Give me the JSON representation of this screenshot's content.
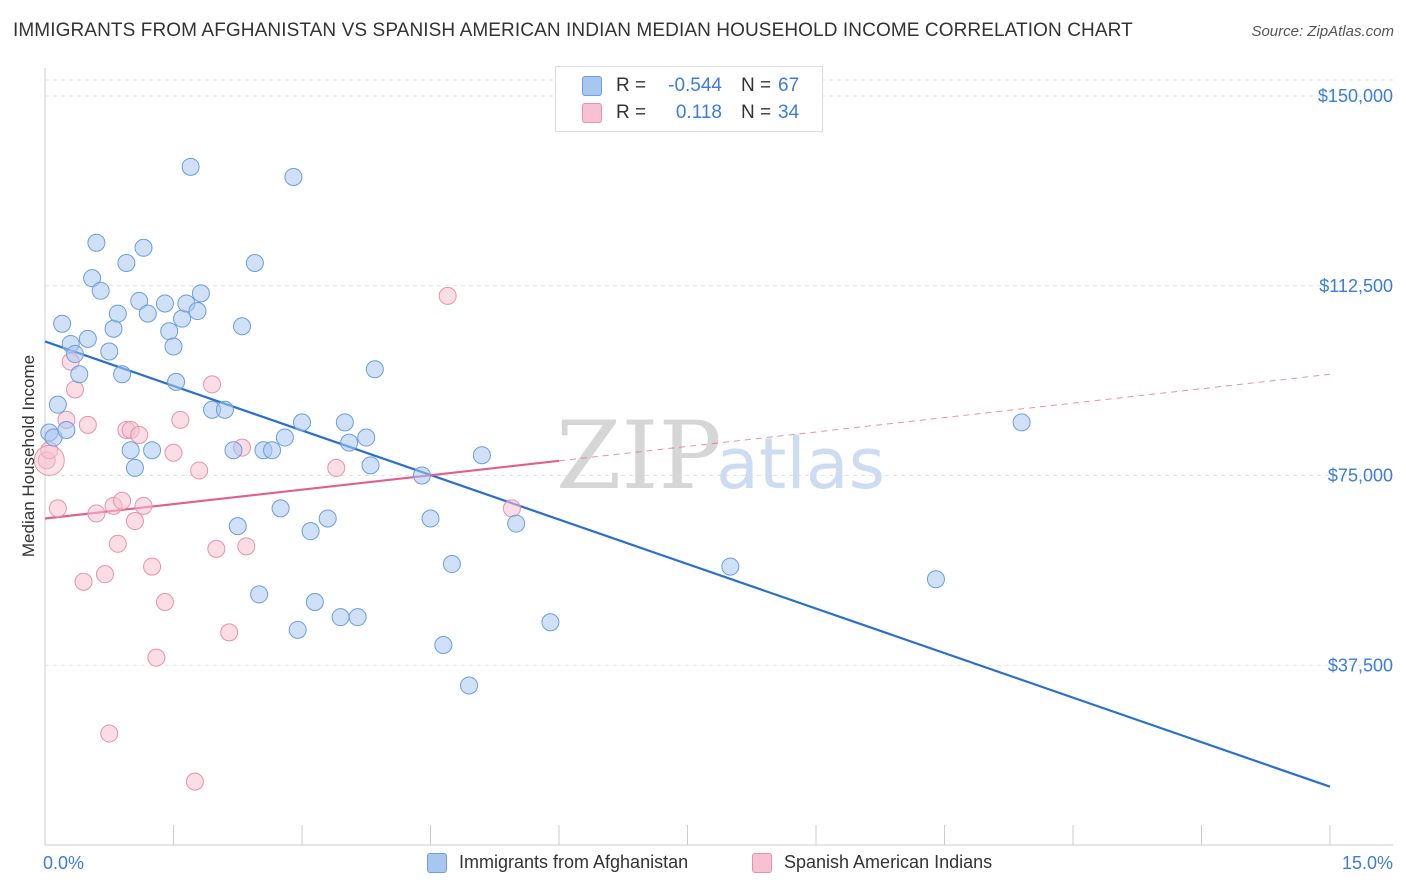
{
  "title": "IMMIGRANTS FROM AFGHANISTAN VS SPANISH AMERICAN INDIAN MEDIAN HOUSEHOLD INCOME CORRELATION CHART",
  "source": "Source: ZipAtlas.com",
  "watermark": {
    "zip": "ZIP",
    "atlas": "atlas"
  },
  "legend": {
    "rows": [
      {
        "r_label": "R =",
        "r_value": "-0.544",
        "n_label": "N =",
        "n_value": "67",
        "color": "#a9c6f0"
      },
      {
        "r_label": "R =",
        "r_value": "0.118",
        "n_label": "N =",
        "n_value": "34",
        "color": "#f7bfd0"
      }
    ]
  },
  "bottom_legend": {
    "afghanistan": "Immigrants from Afghanistan",
    "spanish": "Spanish American Indians"
  },
  "colors": {
    "blue_fill": "#a9c6f0",
    "blue_stroke": "#6a9edf",
    "blue_line": "#2a6fd0",
    "pink_fill": "#f7c1d1",
    "pink_stroke": "#e891ad",
    "pink_line": "#e0608a",
    "axis_text": "#3b7dd8"
  },
  "chart_data": {
    "type": "scatter",
    "title": "IMMIGRANTS FROM AFGHANISTAN VS SPANISH AMERICAN INDIAN MEDIAN HOUSEHOLD INCOME CORRELATION CHART",
    "xlabel": "",
    "ylabel": "Median Household Income",
    "xlim": [
      0,
      15
    ],
    "ylim": [
      0,
      157000
    ],
    "x_tick_labels": [
      "0.0%",
      "15.0%"
    ],
    "y_ticks": [
      37500,
      75000,
      112500,
      150000
    ],
    "y_tick_labels": [
      "$37,500",
      "$75,000",
      "$112,500",
      "$150,000"
    ],
    "grid": true,
    "series": [
      {
        "name": "Immigrants from Afghanistan",
        "r": -0.544,
        "n": 67,
        "trend": {
          "x": [
            0,
            15
          ],
          "y": [
            101500,
            13500
          ],
          "style": "solid"
        },
        "points": [
          [
            0.05,
            83500
          ],
          [
            0.1,
            82500
          ],
          [
            0.15,
            89000
          ],
          [
            0.2,
            105000
          ],
          [
            0.25,
            84000
          ],
          [
            0.3,
            101000
          ],
          [
            0.35,
            99000
          ],
          [
            0.4,
            95000
          ],
          [
            0.5,
            102000
          ],
          [
            0.55,
            114000
          ],
          [
            0.6,
            121000
          ],
          [
            0.65,
            111500
          ],
          [
            0.75,
            99500
          ],
          [
            0.8,
            104000
          ],
          [
            0.85,
            107000
          ],
          [
            0.9,
            95000
          ],
          [
            0.95,
            117000
          ],
          [
            1.0,
            80000
          ],
          [
            1.05,
            76500
          ],
          [
            1.1,
            109500
          ],
          [
            1.15,
            120000
          ],
          [
            1.2,
            107000
          ],
          [
            1.25,
            80000
          ],
          [
            1.4,
            109000
          ],
          [
            1.45,
            103500
          ],
          [
            1.5,
            100500
          ],
          [
            1.53,
            93500
          ],
          [
            1.6,
            106000
          ],
          [
            1.65,
            109000
          ],
          [
            1.7,
            136000
          ],
          [
            1.78,
            107500
          ],
          [
            1.82,
            111000
          ],
          [
            1.95,
            88000
          ],
          [
            2.1,
            88000
          ],
          [
            2.2,
            80000
          ],
          [
            2.25,
            65000
          ],
          [
            2.3,
            104500
          ],
          [
            2.45,
            117000
          ],
          [
            2.5,
            51500
          ],
          [
            2.55,
            80000
          ],
          [
            2.65,
            80000
          ],
          [
            2.75,
            68500
          ],
          [
            2.8,
            82500
          ],
          [
            2.9,
            134000
          ],
          [
            2.95,
            44500
          ],
          [
            3.0,
            85500
          ],
          [
            3.1,
            64000
          ],
          [
            3.15,
            50000
          ],
          [
            3.3,
            66500
          ],
          [
            3.45,
            47000
          ],
          [
            3.5,
            85500
          ],
          [
            3.55,
            81500
          ],
          [
            3.65,
            47000
          ],
          [
            3.75,
            82500
          ],
          [
            3.8,
            77000
          ],
          [
            3.85,
            96000
          ],
          [
            4.4,
            75000
          ],
          [
            4.5,
            66500
          ],
          [
            4.65,
            41500
          ],
          [
            4.75,
            57500
          ],
          [
            4.95,
            33500
          ],
          [
            5.1,
            79000
          ],
          [
            5.5,
            65500
          ],
          [
            5.9,
            46000
          ],
          [
            8.0,
            57000
          ],
          [
            10.4,
            54500
          ],
          [
            11.4,
            85500
          ]
        ]
      },
      {
        "name": "Spanish American Indians",
        "r": 0.118,
        "n": 34,
        "trend": {
          "x": [
            0,
            15
          ],
          "y": [
            66500,
            95000
          ],
          "solid_until_x": 6.0
        },
        "points": [
          [
            0.02,
            78000
          ],
          [
            0.05,
            80000
          ],
          [
            0.15,
            68500
          ],
          [
            0.25,
            86000
          ],
          [
            0.3,
            97500
          ],
          [
            0.35,
            92000
          ],
          [
            0.45,
            54000
          ],
          [
            0.5,
            85000
          ],
          [
            0.6,
            67500
          ],
          [
            0.7,
            55500
          ],
          [
            0.75,
            24000
          ],
          [
            0.8,
            69000
          ],
          [
            0.85,
            61500
          ],
          [
            0.9,
            70000
          ],
          [
            0.95,
            84000
          ],
          [
            1.0,
            84000
          ],
          [
            1.05,
            66000
          ],
          [
            1.1,
            83000
          ],
          [
            1.15,
            69000
          ],
          [
            1.25,
            57000
          ],
          [
            1.3,
            39000
          ],
          [
            1.4,
            50000
          ],
          [
            1.5,
            79500
          ],
          [
            1.58,
            86000
          ],
          [
            1.75,
            14500
          ],
          [
            1.8,
            76000
          ],
          [
            1.95,
            93000
          ],
          [
            2.0,
            60500
          ],
          [
            2.15,
            44000
          ],
          [
            2.3,
            80500
          ],
          [
            2.35,
            61000
          ],
          [
            3.4,
            76500
          ],
          [
            4.7,
            110500
          ],
          [
            5.45,
            68500
          ]
        ]
      }
    ]
  }
}
